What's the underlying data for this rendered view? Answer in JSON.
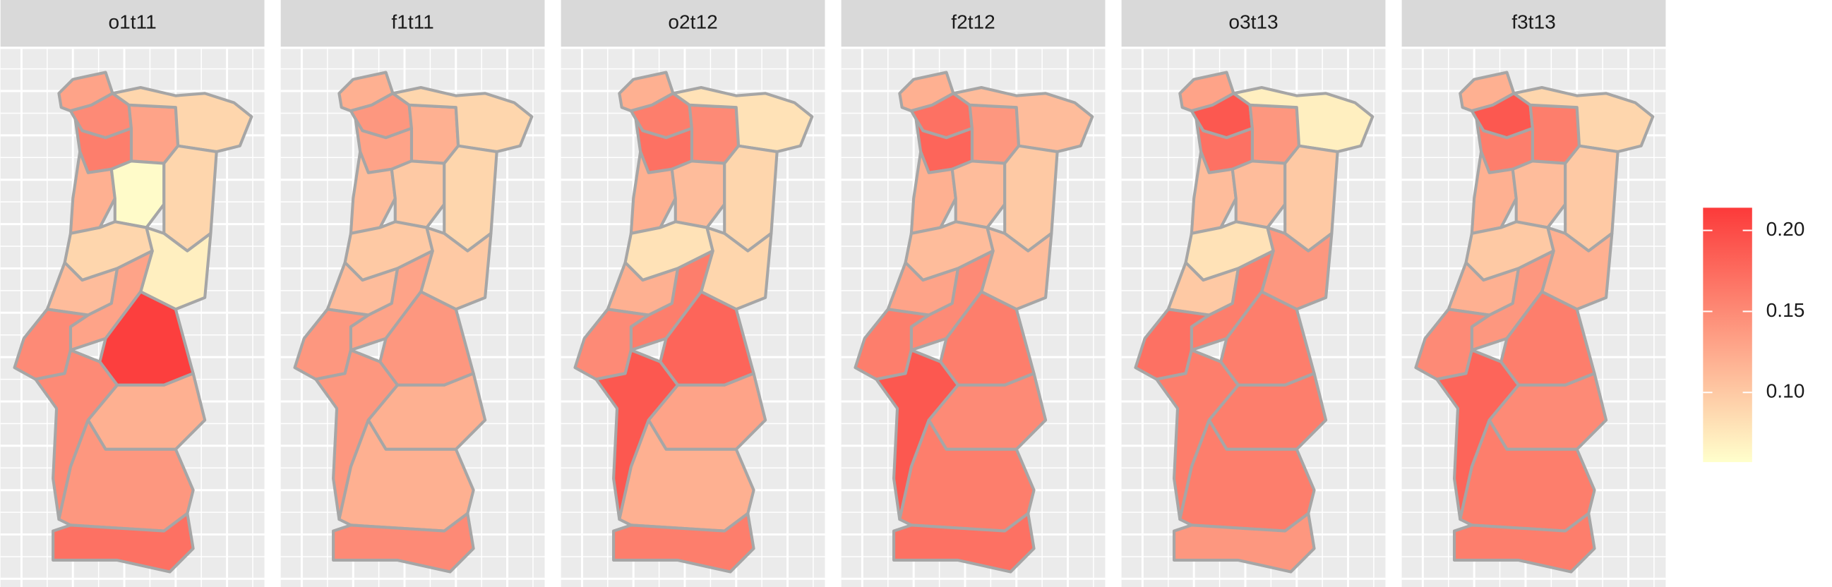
{
  "chart_data": {
    "type": "choropleth",
    "facets": [
      {
        "title": "o1t11",
        "values": [
          0.13,
          0.15,
          0.13,
          0.09,
          0.16,
          0.12,
          0.06,
          0.09,
          0.09,
          0.07,
          0.11,
          0.13,
          0.15,
          0.21,
          0.15,
          0.12,
          0.14,
          0.17
        ]
      },
      {
        "title": "f1t11",
        "values": [
          0.12,
          0.14,
          0.12,
          0.09,
          0.13,
          0.11,
          0.1,
          0.09,
          0.1,
          0.1,
          0.11,
          0.13,
          0.14,
          0.14,
          0.14,
          0.12,
          0.12,
          0.15
        ]
      },
      {
        "title": "o2t12",
        "values": [
          0.12,
          0.16,
          0.15,
          0.08,
          0.17,
          0.12,
          0.11,
          0.09,
          0.08,
          0.09,
          0.12,
          0.16,
          0.15,
          0.18,
          0.19,
          0.13,
          0.12,
          0.16
        ]
      },
      {
        "title": "f2t12",
        "values": [
          0.12,
          0.17,
          0.14,
          0.11,
          0.18,
          0.12,
          0.11,
          0.1,
          0.11,
          0.11,
          0.13,
          0.15,
          0.16,
          0.16,
          0.19,
          0.15,
          0.16,
          0.17
        ]
      },
      {
        "title": "o3t13",
        "values": [
          0.13,
          0.19,
          0.14,
          0.07,
          0.17,
          0.11,
          0.11,
          0.1,
          0.08,
          0.14,
          0.1,
          0.16,
          0.17,
          0.16,
          0.16,
          0.16,
          0.16,
          0.14
        ]
      },
      {
        "title": "f3t13",
        "values": [
          0.12,
          0.19,
          0.16,
          0.09,
          0.16,
          0.12,
          0.11,
          0.1,
          0.1,
          0.12,
          0.12,
          0.14,
          0.15,
          0.16,
          0.18,
          0.15,
          0.16,
          0.16
        ]
      }
    ],
    "legend": {
      "low_color": "#FFFFCC",
      "high_color": "#FC3A3A",
      "limits": [
        0.057,
        0.214
      ],
      "ticks": [
        {
          "value": 0.1,
          "label": "0.10"
        },
        {
          "value": 0.15,
          "label": "0.15"
        },
        {
          "value": 0.2,
          "label": "0.20"
        }
      ]
    }
  }
}
